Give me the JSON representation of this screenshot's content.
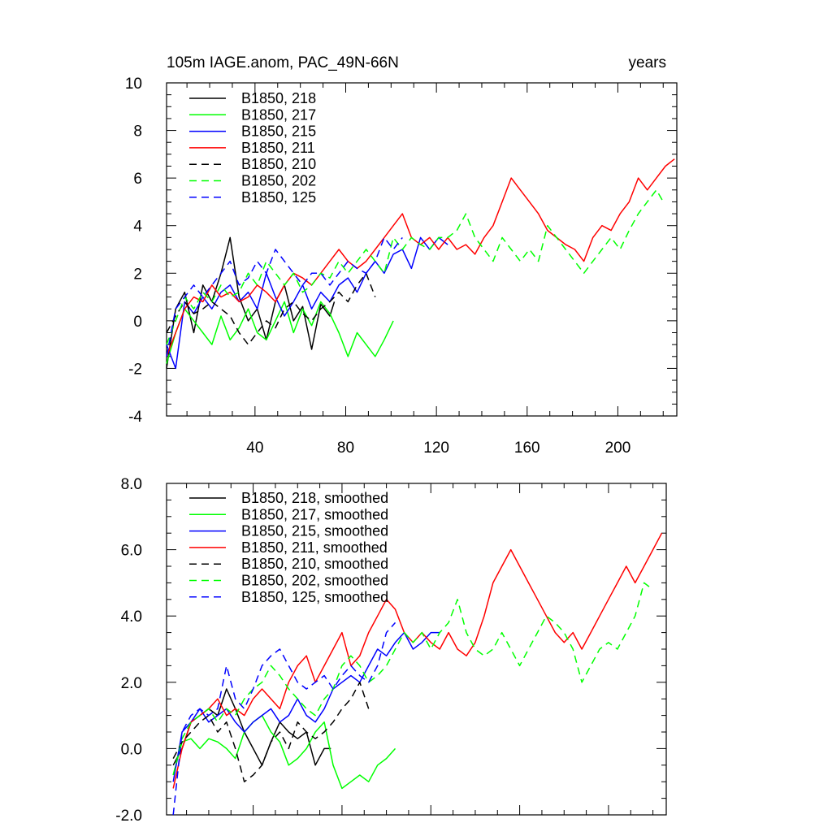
{
  "chart_data": [
    {
      "type": "line",
      "title": "105m IAGE.anom, PAC_49N-66N",
      "title_right": "years",
      "xlim": [
        1,
        226
      ],
      "ylim": [
        -4,
        10
      ],
      "xticks": [
        40,
        80,
        120,
        160,
        200
      ],
      "yticks": [
        -4,
        -2,
        0,
        2,
        4,
        6,
        8,
        10
      ],
      "ytick_labels": [
        "-4",
        "-2",
        "0",
        "2",
        "4",
        "6",
        "8",
        "10"
      ],
      "legend_position": "top-left",
      "series": [
        {
          "name": "B1850, 218",
          "color": "#000000",
          "dash": "solid",
          "x": [
            1,
            5,
            9,
            13,
            17,
            21,
            25,
            29,
            33,
            37,
            41,
            45,
            49,
            53,
            57,
            61,
            65,
            69,
            73,
            75
          ],
          "y": [
            -2.0,
            0.5,
            1.2,
            -0.5,
            1.5,
            0.8,
            2.0,
            3.5,
            1.0,
            0.0,
            0.5,
            -0.8,
            0.8,
            1.5,
            0.0,
            0.6,
            -1.2,
            0.7,
            0.2,
            0.8
          ]
        },
        {
          "name": "B1850, 217",
          "color": "#00ff00",
          "dash": "solid",
          "x": [
            1,
            5,
            9,
            13,
            17,
            21,
            25,
            29,
            33,
            37,
            41,
            45,
            49,
            53,
            57,
            61,
            65,
            69,
            73,
            77,
            81,
            85,
            89,
            93,
            97,
            101
          ],
          "y": [
            -1.8,
            -0.5,
            0.5,
            0.0,
            -0.5,
            -1.0,
            0.2,
            -0.8,
            -0.3,
            0.5,
            -0.5,
            -0.8,
            0.0,
            0.8,
            -0.5,
            0.5,
            -0.2,
            0.8,
            0.3,
            -0.5,
            -1.5,
            -0.5,
            -1.0,
            -1.5,
            -0.8,
            0.0
          ]
        },
        {
          "name": "B1850, 215",
          "color": "#0000ff",
          "dash": "solid",
          "x": [
            1,
            5,
            9,
            13,
            17,
            21,
            25,
            29,
            33,
            37,
            41,
            45,
            49,
            53,
            57,
            61,
            65,
            69,
            73,
            77,
            81,
            85,
            89,
            93,
            97,
            101,
            105,
            109,
            113,
            117,
            121,
            125
          ],
          "y": [
            -1.0,
            -2.0,
            0.8,
            0.3,
            1.0,
            0.5,
            1.2,
            1.5,
            0.8,
            1.2,
            0.5,
            2.0,
            1.0,
            0.2,
            0.8,
            1.5,
            0.5,
            1.2,
            0.8,
            1.5,
            1.8,
            1.2,
            2.0,
            2.5,
            2.0,
            2.8,
            3.0,
            2.2,
            3.5,
            3.0,
            3.5,
            3.2
          ]
        },
        {
          "name": "B1850, 211",
          "color": "#ff0000",
          "dash": "solid",
          "x": [
            1,
            5,
            9,
            13,
            17,
            21,
            25,
            29,
            33,
            37,
            41,
            45,
            49,
            53,
            57,
            61,
            65,
            69,
            73,
            77,
            81,
            85,
            89,
            93,
            97,
            101,
            105,
            109,
            113,
            117,
            121,
            125,
            129,
            133,
            137,
            141,
            145,
            149,
            153,
            157,
            161,
            165,
            169,
            173,
            177,
            181,
            185,
            189,
            193,
            197,
            201,
            205,
            209,
            213,
            217,
            221,
            225
          ],
          "y": [
            -1.5,
            -0.5,
            0.5,
            1.0,
            0.8,
            1.5,
            1.0,
            1.2,
            0.8,
            1.0,
            1.5,
            1.2,
            0.8,
            1.5,
            2.0,
            1.8,
            1.5,
            2.0,
            2.5,
            3.0,
            2.5,
            2.2,
            2.5,
            3.0,
            3.5,
            4.0,
            4.5,
            3.5,
            3.2,
            3.5,
            3.0,
            3.5,
            3.0,
            3.2,
            2.8,
            3.5,
            4.0,
            5.0,
            6.0,
            5.5,
            5.0,
            4.5,
            3.8,
            3.5,
            3.2,
            3.0,
            2.5,
            3.5,
            4.0,
            3.8,
            4.5,
            5.0,
            6.0,
            5.5,
            6.0,
            6.5,
            6.8
          ]
        },
        {
          "name": "B1850, 210",
          "color": "#000000",
          "dash": "dashed",
          "x": [
            1,
            5,
            9,
            13,
            17,
            21,
            25,
            29,
            33,
            37,
            41,
            45,
            49,
            53,
            57,
            61,
            65,
            69,
            73,
            77,
            81,
            85,
            89,
            93
          ],
          "y": [
            -0.5,
            0.2,
            0.8,
            0.3,
            0.5,
            0.8,
            0.5,
            0.2,
            -0.5,
            -1.0,
            -0.5,
            0.0,
            -0.3,
            0.5,
            0.8,
            0.3,
            0.0,
            0.5,
            0.8,
            1.2,
            0.8,
            1.5,
            2.0,
            1.0
          ]
        },
        {
          "name": "B1850, 202",
          "color": "#00ff00",
          "dash": "dashed",
          "x": [
            1,
            5,
            9,
            13,
            17,
            21,
            25,
            29,
            33,
            37,
            41,
            45,
            49,
            53,
            57,
            61,
            65,
            69,
            73,
            77,
            81,
            85,
            89,
            93,
            97,
            101,
            105,
            109,
            113,
            117,
            121,
            125,
            129,
            133,
            137,
            141,
            145,
            149,
            153,
            157,
            161,
            165,
            169,
            173,
            177,
            181,
            185,
            189,
            193,
            197,
            201,
            205,
            209,
            213,
            217,
            220
          ],
          "y": [
            -1.0,
            0.0,
            1.0,
            0.5,
            1.2,
            0.8,
            1.5,
            1.0,
            1.2,
            2.0,
            1.5,
            2.5,
            2.0,
            1.5,
            2.0,
            1.2,
            1.5,
            2.0,
            1.8,
            2.5,
            2.0,
            2.5,
            3.0,
            2.5,
            2.0,
            3.5,
            3.0,
            3.5,
            3.2,
            3.0,
            3.5,
            3.5,
            3.8,
            4.5,
            3.5,
            3.0,
            2.5,
            3.5,
            3.0,
            2.5,
            3.0,
            2.5,
            4.0,
            3.5,
            3.0,
            2.5,
            2.0,
            2.5,
            3.0,
            3.5,
            3.0,
            3.8,
            4.5,
            5.0,
            5.5,
            5.0
          ]
        },
        {
          "name": "B1850, 125",
          "color": "#0000ff",
          "dash": "dashed",
          "x": [
            1,
            5,
            9,
            13,
            17,
            21,
            25,
            29,
            33,
            37,
            41,
            45,
            49,
            53,
            57,
            61,
            65,
            69,
            73,
            77,
            81,
            85,
            89,
            93,
            97,
            101,
            105
          ],
          "y": [
            -1.5,
            0.5,
            1.0,
            1.5,
            1.0,
            1.5,
            2.0,
            2.5,
            1.5,
            1.8,
            2.5,
            2.0,
            3.0,
            2.5,
            2.0,
            1.5,
            2.0,
            2.0,
            1.5,
            2.0,
            2.5,
            2.2,
            2.0,
            2.5,
            3.5,
            3.0,
            3.5
          ]
        }
      ]
    },
    {
      "type": "line",
      "xlim": [
        1,
        226
      ],
      "ylim": [
        -2.0,
        8.0
      ],
      "xticks": [
        40,
        80,
        120,
        160,
        200
      ],
      "yticks": [
        -2.0,
        0.0,
        2.0,
        4.0,
        6.0,
        8.0
      ],
      "ytick_labels": [
        "-2.0",
        "0.0",
        "2.0",
        "4.0",
        "6.0",
        "8.0"
      ],
      "legend_position": "top-left",
      "series": [
        {
          "name": "B1850, 218, smoothed",
          "color": "#000000",
          "dash": "solid",
          "x": [
            4,
            8,
            12,
            16,
            20,
            24,
            28,
            32,
            36,
            40,
            44,
            48,
            52,
            56,
            60,
            64,
            68,
            72,
            75
          ],
          "y": [
            -0.5,
            0.0,
            0.8,
            1.0,
            1.2,
            1.0,
            1.8,
            1.2,
            0.5,
            0.0,
            -0.5,
            0.2,
            0.8,
            0.5,
            0.3,
            0.5,
            -0.5,
            0.0,
            0.0
          ]
        },
        {
          "name": "B1850, 217, smoothed",
          "color": "#00ff00",
          "dash": "solid",
          "x": [
            4,
            8,
            12,
            16,
            20,
            24,
            28,
            32,
            36,
            40,
            44,
            48,
            52,
            56,
            60,
            64,
            68,
            72,
            76,
            80,
            84,
            88,
            92,
            96,
            100,
            104
          ],
          "y": [
            -0.8,
            0.2,
            0.3,
            0.0,
            0.3,
            0.2,
            0.0,
            -0.3,
            0.5,
            0.8,
            1.0,
            0.5,
            0.2,
            -0.5,
            -0.3,
            0.0,
            0.5,
            0.8,
            -0.5,
            -1.2,
            -1.0,
            -0.8,
            -1.0,
            -0.5,
            -0.3,
            0.0
          ]
        },
        {
          "name": "B1850, 215, smoothed",
          "color": "#0000ff",
          "dash": "solid",
          "x": [
            4,
            8,
            12,
            16,
            20,
            24,
            28,
            32,
            36,
            40,
            44,
            48,
            52,
            56,
            60,
            64,
            68,
            72,
            76,
            80,
            84,
            88,
            92,
            96,
            100,
            104,
            108,
            112,
            116,
            120,
            124
          ],
          "y": [
            -1.0,
            0.5,
            0.8,
            1.2,
            0.8,
            1.0,
            1.2,
            0.8,
            0.5,
            0.8,
            1.0,
            1.2,
            0.8,
            1.0,
            1.5,
            1.0,
            0.8,
            1.2,
            1.8,
            2.0,
            2.2,
            2.0,
            2.5,
            3.0,
            2.8,
            3.2,
            3.5,
            3.0,
            3.2,
            3.5,
            3.5
          ]
        },
        {
          "name": "B1850, 211, smoothed",
          "color": "#ff0000",
          "dash": "solid",
          "x": [
            4,
            8,
            12,
            16,
            20,
            24,
            28,
            32,
            36,
            40,
            44,
            48,
            52,
            56,
            60,
            64,
            68,
            72,
            76,
            80,
            84,
            88,
            92,
            96,
            100,
            104,
            108,
            112,
            116,
            120,
            124,
            128,
            132,
            136,
            140,
            144,
            148,
            152,
            156,
            160,
            164,
            168,
            172,
            176,
            180,
            184,
            188,
            192,
            196,
            200,
            204,
            208,
            212,
            216,
            220,
            224
          ],
          "y": [
            -1.2,
            0.0,
            0.8,
            1.0,
            1.2,
            1.5,
            1.0,
            1.2,
            1.0,
            1.5,
            1.8,
            1.5,
            1.2,
            2.0,
            2.5,
            2.8,
            2.0,
            2.5,
            3.0,
            3.5,
            2.5,
            2.8,
            3.5,
            4.0,
            4.5,
            4.2,
            3.5,
            3.2,
            3.5,
            3.2,
            3.0,
            3.5,
            3.0,
            2.8,
            3.2,
            4.0,
            5.0,
            5.5,
            6.0,
            5.5,
            5.0,
            4.5,
            4.0,
            3.5,
            3.2,
            3.5,
            3.0,
            3.5,
            4.0,
            4.5,
            5.0,
            5.5,
            5.0,
            5.5,
            6.0,
            6.5
          ]
        },
        {
          "name": "B1850, 210, smoothed",
          "color": "#000000",
          "dash": "dashed",
          "x": [
            4,
            8,
            12,
            16,
            20,
            24,
            28,
            32,
            36,
            40,
            44,
            48,
            52,
            56,
            60,
            64,
            68,
            72,
            76,
            80,
            84,
            88,
            92
          ],
          "y": [
            -0.3,
            0.2,
            0.5,
            0.8,
            1.0,
            0.5,
            0.8,
            0.0,
            -1.0,
            -0.8,
            -0.5,
            0.2,
            0.5,
            0.0,
            0.8,
            0.5,
            0.3,
            0.5,
            0.8,
            1.2,
            1.5,
            2.0,
            1.2
          ]
        },
        {
          "name": "B1850, 202, smoothed",
          "color": "#00ff00",
          "dash": "dashed",
          "x": [
            4,
            8,
            12,
            16,
            20,
            24,
            28,
            32,
            36,
            40,
            44,
            48,
            52,
            56,
            60,
            64,
            68,
            72,
            76,
            80,
            84,
            88,
            92,
            96,
            100,
            104,
            108,
            112,
            116,
            120,
            124,
            128,
            132,
            136,
            140,
            144,
            148,
            152,
            156,
            160,
            164,
            168,
            172,
            176,
            180,
            184,
            188,
            192,
            196,
            200,
            204,
            208,
            212,
            216,
            220
          ],
          "y": [
            -0.8,
            0.3,
            0.8,
            1.0,
            1.2,
            0.8,
            1.2,
            1.0,
            1.5,
            1.8,
            2.0,
            2.5,
            2.2,
            1.8,
            1.5,
            1.2,
            1.0,
            1.5,
            1.8,
            2.5,
            2.8,
            2.5,
            2.0,
            2.2,
            2.5,
            3.0,
            3.5,
            3.2,
            3.5,
            3.0,
            3.5,
            3.8,
            4.5,
            3.5,
            3.0,
            2.8,
            3.0,
            3.5,
            3.0,
            2.5,
            3.0,
            3.5,
            4.0,
            3.8,
            3.5,
            3.0,
            2.0,
            2.5,
            3.0,
            3.2,
            3.0,
            3.5,
            4.0,
            5.0,
            4.8
          ]
        },
        {
          "name": "B1850, 125, smoothed",
          "color": "#0000ff",
          "dash": "dashed",
          "x": [
            4,
            8,
            12,
            16,
            20,
            24,
            28,
            32,
            36,
            40,
            44,
            48,
            52,
            56,
            60,
            64,
            68,
            72,
            76,
            80,
            84,
            88,
            92,
            96,
            100,
            104
          ],
          "y": [
            -2.0,
            0.5,
            1.0,
            1.2,
            1.0,
            1.2,
            2.5,
            1.5,
            1.2,
            1.8,
            2.5,
            2.8,
            3.0,
            2.5,
            2.0,
            1.8,
            2.0,
            2.2,
            1.8,
            2.2,
            2.5,
            2.2,
            2.0,
            2.5,
            3.5,
            3.8
          ]
        }
      ]
    }
  ]
}
